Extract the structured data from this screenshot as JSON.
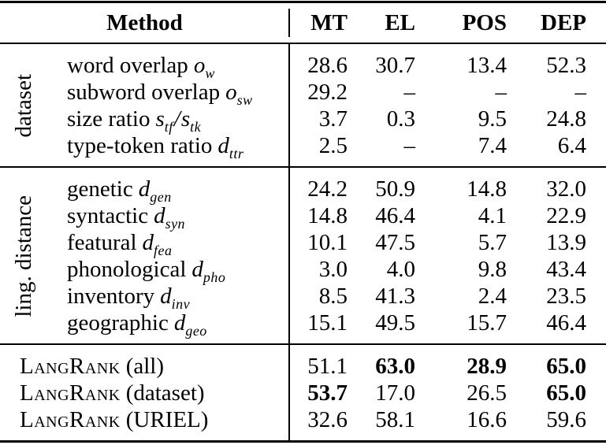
{
  "colors": {
    "text": "#000000",
    "background": "#ffffff",
    "rule": "#000000"
  },
  "table": {
    "header": {
      "method": "Method",
      "columns": [
        "MT",
        "EL",
        "POS",
        "DEP"
      ]
    },
    "sections": [
      {
        "group": "dataset",
        "rows": [
          {
            "label": "word overlap",
            "sym": [
              {
                "t": "o",
                "sub": "w"
              }
            ],
            "values": [
              "28.6",
              "30.7",
              "13.4",
              "52.3"
            ]
          },
          {
            "label": "subword overlap",
            "sym": [
              {
                "t": "o",
                "sub": "sw"
              }
            ],
            "values": [
              "29.2",
              "–",
              "–",
              "–"
            ]
          },
          {
            "label": "size ratio",
            "sym": [
              {
                "t": "s",
                "sub": "tf"
              },
              {
                "t": "/",
                "sub": ""
              },
              {
                "t": "s",
                "sub": "tk"
              }
            ],
            "values": [
              "3.7",
              "0.3",
              "9.5",
              "24.8"
            ]
          },
          {
            "label": "type-token ratio",
            "sym": [
              {
                "t": "d",
                "sub": "ttr"
              }
            ],
            "values": [
              "2.5",
              "–",
              "7.4",
              "6.4"
            ]
          }
        ]
      },
      {
        "group": "ling. distance",
        "rows": [
          {
            "label": "genetic",
            "sym": [
              {
                "t": "d",
                "sub": "gen"
              }
            ],
            "values": [
              "24.2",
              "50.9",
              "14.8",
              "32.0"
            ]
          },
          {
            "label": "syntactic",
            "sym": [
              {
                "t": "d",
                "sub": "syn"
              }
            ],
            "values": [
              "14.8",
              "46.4",
              "4.1",
              "22.9"
            ]
          },
          {
            "label": "featural",
            "sym": [
              {
                "t": "d",
                "sub": "fea"
              }
            ],
            "values": [
              "10.1",
              "47.5",
              "5.7",
              "13.9"
            ]
          },
          {
            "label": "phonological",
            "sym": [
              {
                "t": "d",
                "sub": "pho"
              }
            ],
            "values": [
              "3.0",
              "4.0",
              "9.8",
              "43.4"
            ]
          },
          {
            "label": "inventory",
            "sym": [
              {
                "t": "d",
                "sub": "inv"
              }
            ],
            "values": [
              "8.5",
              "41.3",
              "2.4",
              "23.5"
            ]
          },
          {
            "label": "geographic",
            "sym": [
              {
                "t": "d",
                "sub": "geo"
              }
            ],
            "values": [
              "15.1",
              "49.5",
              "15.7",
              "46.4"
            ]
          }
        ]
      }
    ],
    "footer": [
      {
        "name": "LangRank",
        "suffix": "(all)",
        "values": [
          "51.1",
          "63.0",
          "28.9",
          "65.0"
        ],
        "bold": [
          false,
          true,
          true,
          true
        ]
      },
      {
        "name": "LangRank",
        "suffix": "(dataset)",
        "values": [
          "53.7",
          "17.0",
          "26.5",
          "65.0"
        ],
        "bold": [
          true,
          false,
          false,
          true
        ]
      },
      {
        "name": "LangRank",
        "suffix": "(URIEL)",
        "values": [
          "32.6",
          "58.1",
          "16.6",
          "59.6"
        ],
        "bold": [
          false,
          false,
          false,
          false
        ]
      }
    ]
  }
}
